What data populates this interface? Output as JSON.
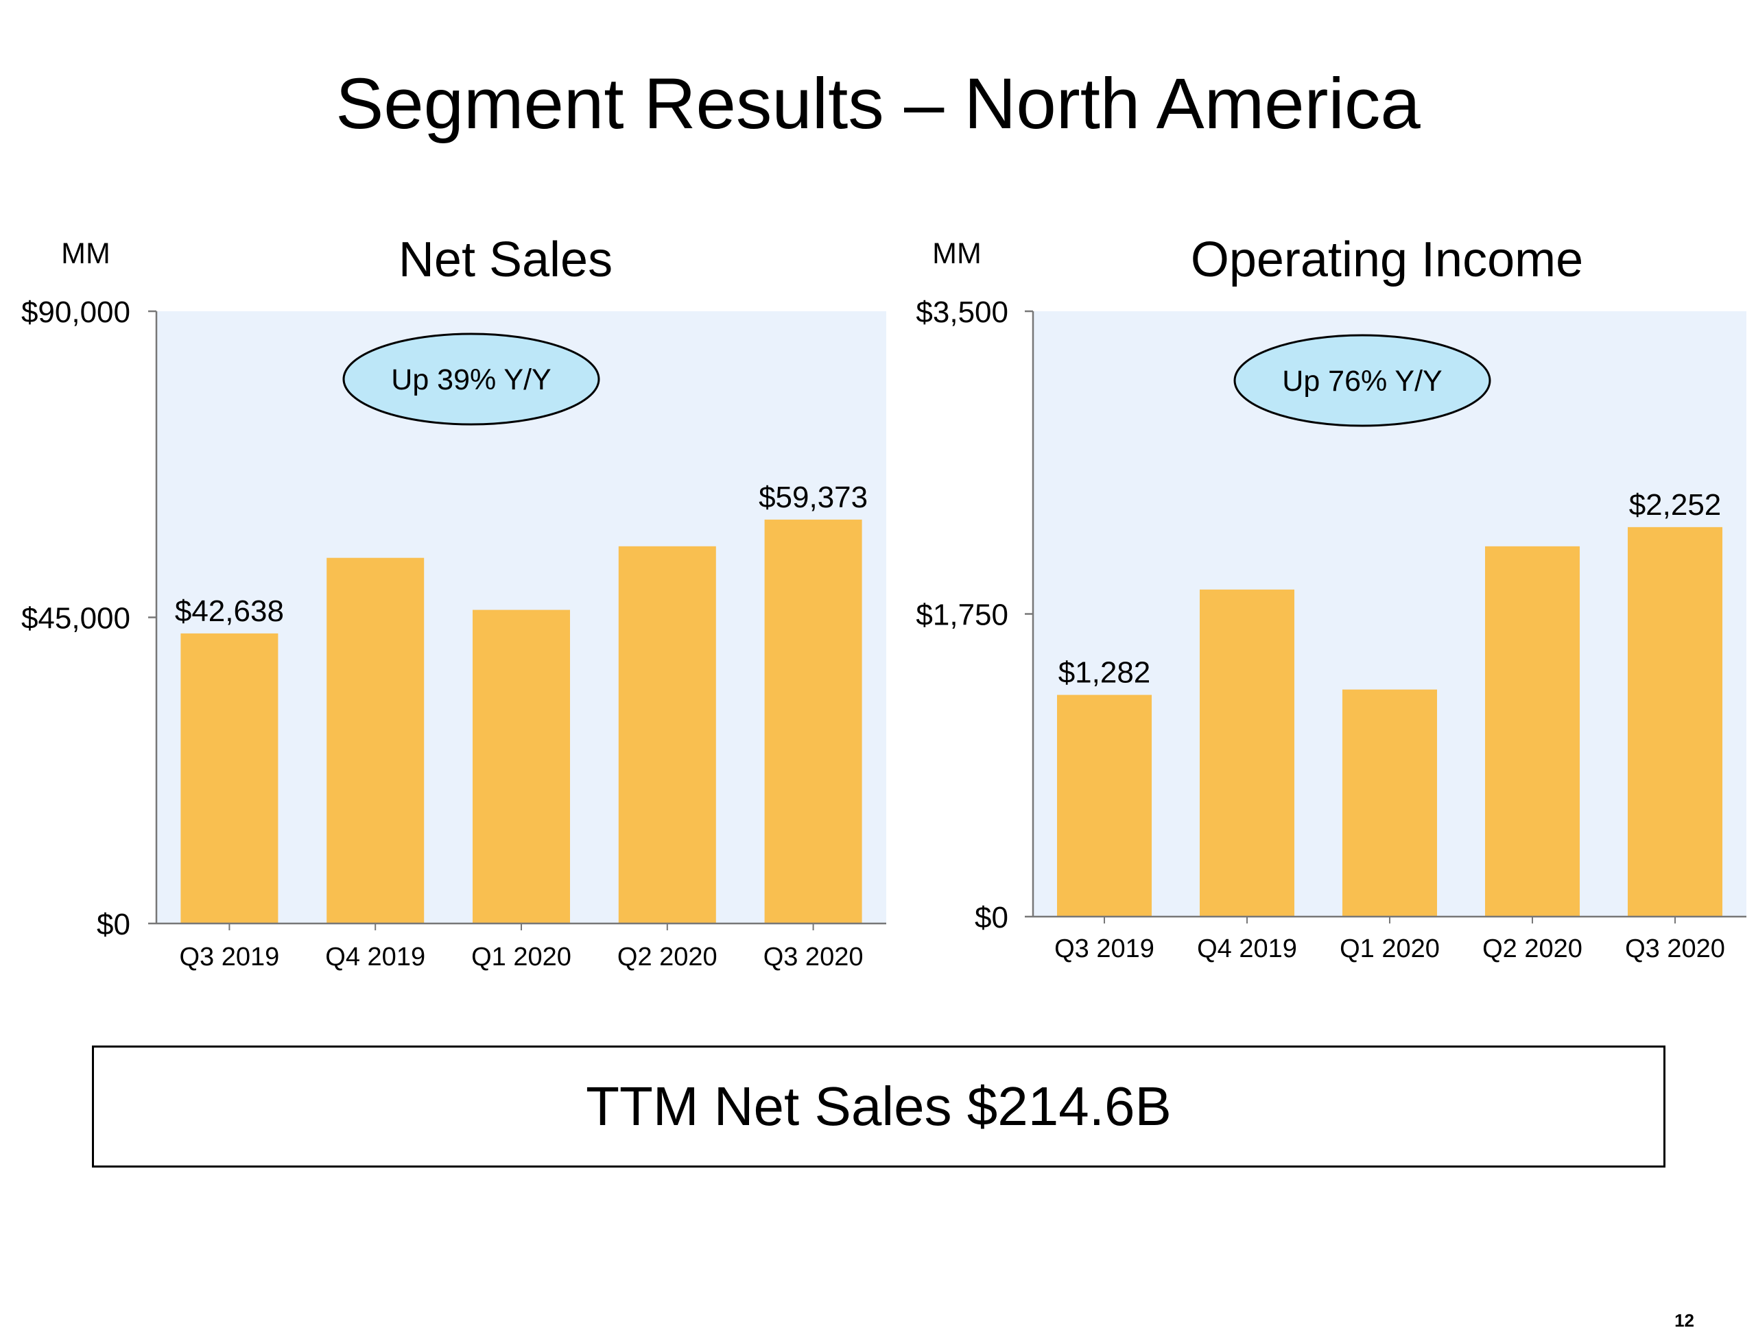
{
  "title": "Segment Results – North America",
  "colors": {
    "bar": "#F9BF50",
    "plot_bg": "#EAF2FC",
    "callout": "#BDE7F8"
  },
  "chart_data": [
    {
      "type": "bar",
      "title": "Net Sales",
      "unit": "MM",
      "categories": [
        "Q3 2019",
        "Q4 2019",
        "Q1 2020",
        "Q2 2020",
        "Q3 2020"
      ],
      "values": [
        42638,
        53750,
        46100,
        55450,
        59373
      ],
      "data_labels": [
        "$42,638",
        "",
        "",
        "",
        "$59,373"
      ],
      "ylim": [
        0,
        90000
      ],
      "yticks": [
        0,
        45000,
        90000
      ],
      "ytick_labels": [
        "$0",
        "$45,000",
        "$90,000"
      ],
      "annotation": "Up 39% Y/Y"
    },
    {
      "type": "bar",
      "title": "Operating Income",
      "unit": "MM",
      "categories": [
        "Q3 2019",
        "Q4 2019",
        "Q1 2020",
        "Q2 2020",
        "Q3 2020"
      ],
      "values": [
        1282,
        1891,
        1313,
        2141,
        2252
      ],
      "data_labels": [
        "$1,282",
        "",
        "",
        "",
        "$2,252"
      ],
      "ylim": [
        0,
        3500
      ],
      "yticks": [
        0,
        1750,
        3500
      ],
      "ytick_labels": [
        "$0",
        "$1,750",
        "$3,500"
      ],
      "annotation": "Up 76% Y/Y"
    }
  ],
  "ttm": "TTM Net Sales $214.6B",
  "page_number": "12"
}
